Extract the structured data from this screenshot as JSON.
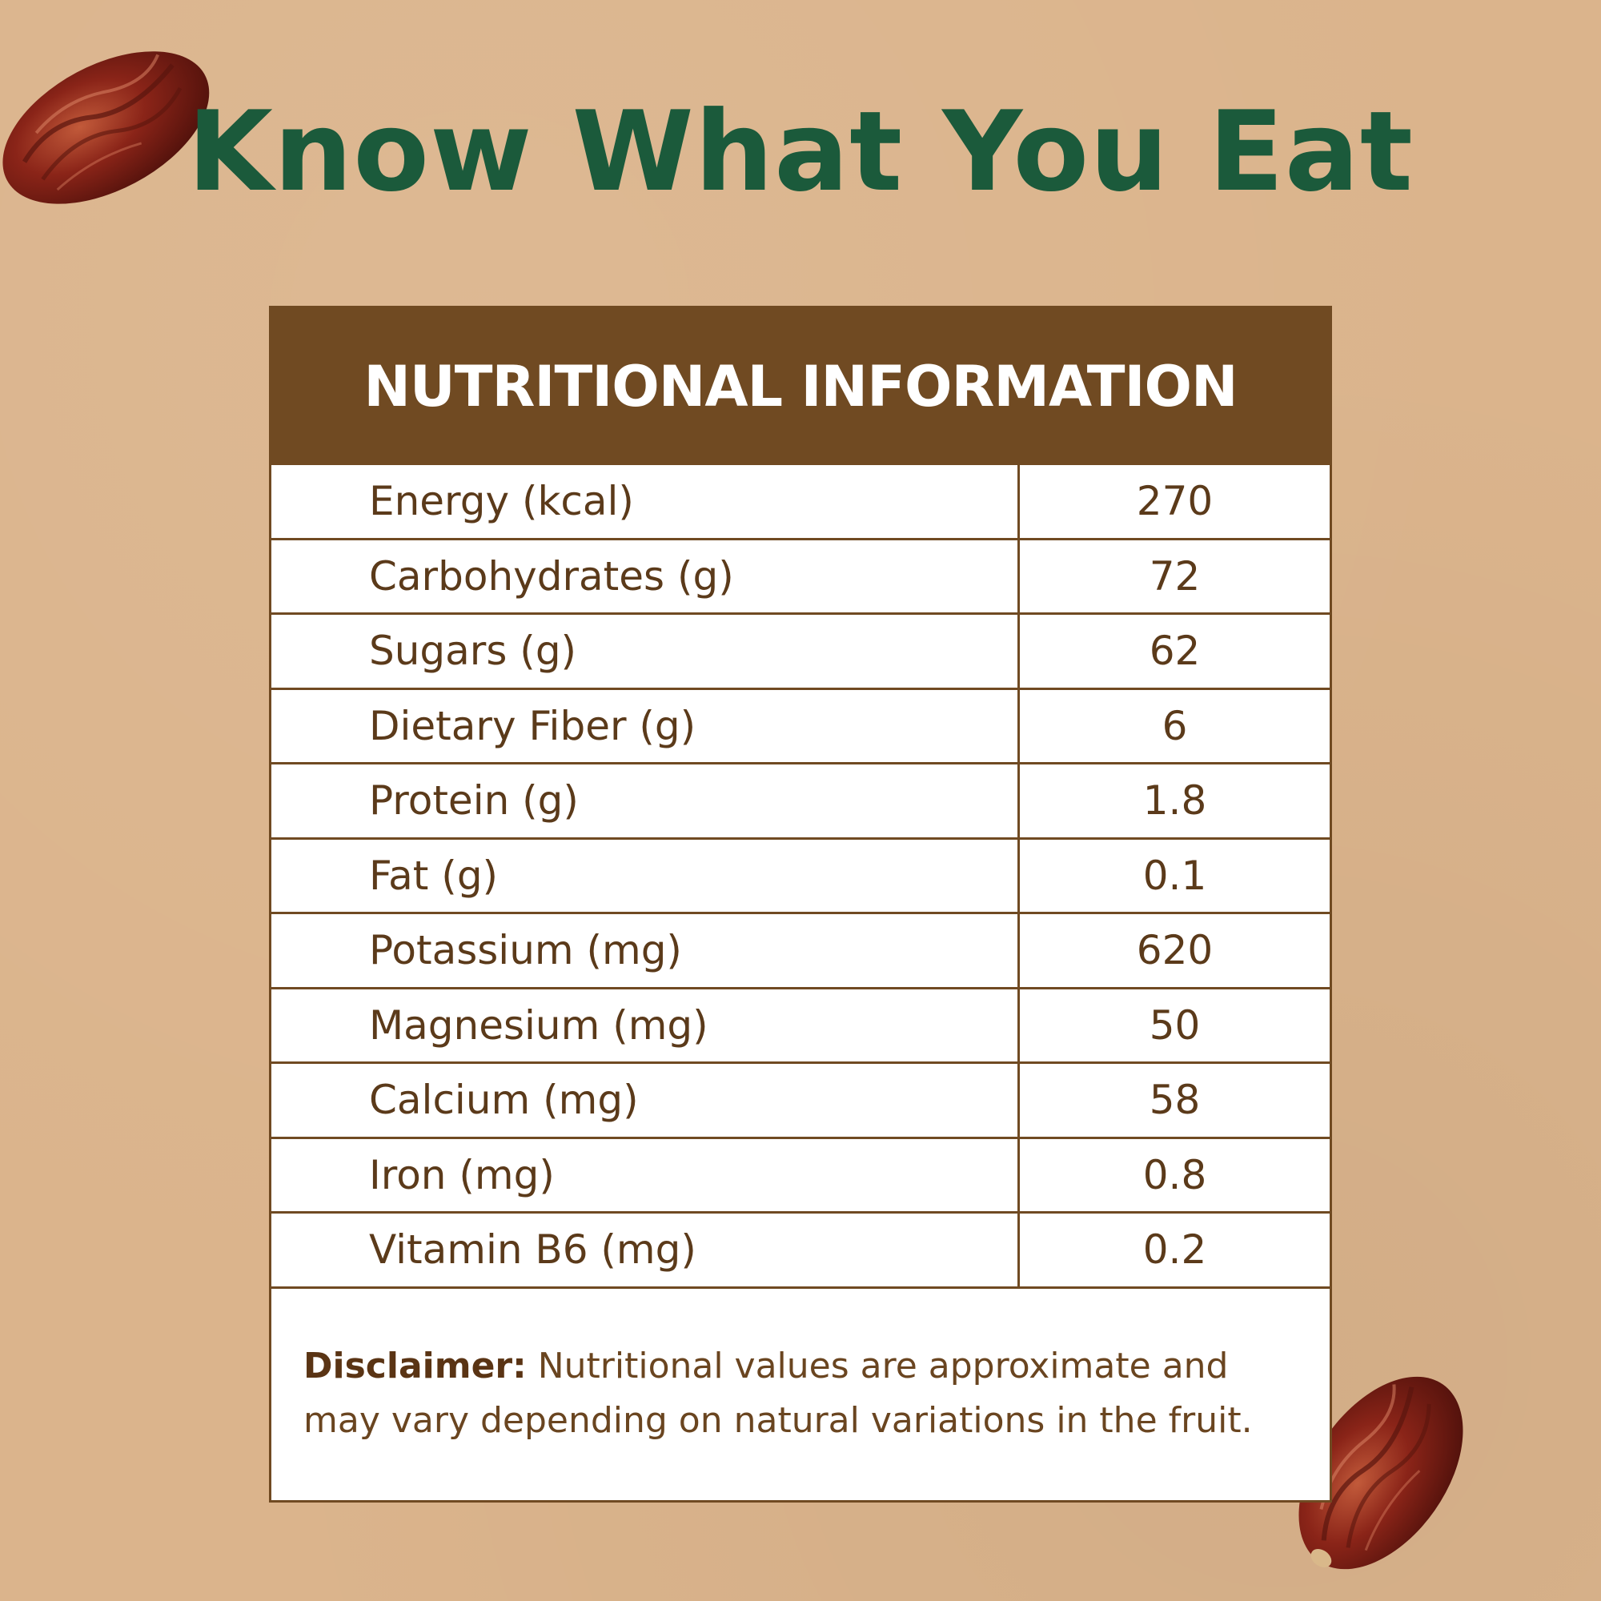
{
  "headline": "Know What You Eat",
  "panel": {
    "title": "NUTRITIONAL INFORMATION",
    "rows": [
      {
        "label": "Energy (kcal)",
        "value": "270"
      },
      {
        "label": "Carbohydrates (g)",
        "value": "72"
      },
      {
        "label": "Sugars (g)",
        "value": "62"
      },
      {
        "label": "Dietary Fiber (g)",
        "value": "6"
      },
      {
        "label": "Protein (g)",
        "value": "1.8"
      },
      {
        "label": "Fat (g)",
        "value": "0.1"
      },
      {
        "label": "Potassium (mg)",
        "value": "620"
      },
      {
        "label": "Magnesium (mg)",
        "value": "50"
      },
      {
        "label": "Calcium (mg)",
        "value": "58"
      },
      {
        "label": "Iron (mg)",
        "value": "0.8"
      },
      {
        "label": "Vitamin B6 (mg)",
        "value": "0.2"
      }
    ],
    "disclaimer_label": "Disclaimer:",
    "disclaimer_text": "Nutritional values are approximate and may vary depending on natural variations in the fruit."
  },
  "colors": {
    "background": "#dbb48c",
    "headline": "#1b5a3b",
    "panel_header": "#704a22",
    "panel_text": "#5b3a1a"
  },
  "decorations": [
    "date-fruit-icon",
    "date-fruit-icon"
  ]
}
